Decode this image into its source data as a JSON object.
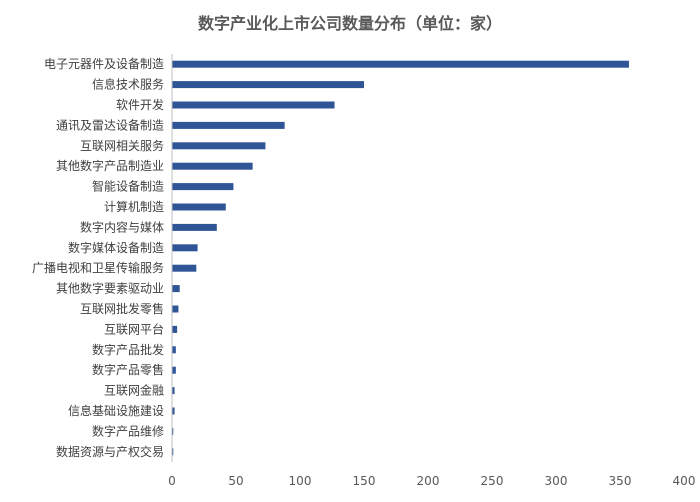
{
  "chart_data": {
    "type": "bar",
    "orientation": "horizontal",
    "title": "数字产业化上市公司数量分布（单位：家）",
    "categories": [
      "电子元器件及设备制造",
      "信息技术服务",
      "软件开发",
      "通讯及雷达设备制造",
      "互联网相关服务",
      "其他数字产品制造业",
      "智能设备制造",
      "计算机制造",
      "数字内容与媒体",
      "数字媒体设备制造",
      "广播电视和卫星传输服务",
      "其他数字要素驱动业",
      "互联网批发零售",
      "互联网平台",
      "数字产品批发",
      "数字产品零售",
      "互联网金融",
      "信息基础设施建设",
      "数字产品维修",
      "数据资源与产权交易"
    ],
    "values": [
      357,
      150,
      127,
      88,
      73,
      63,
      48,
      42,
      35,
      20,
      19,
      6,
      5,
      4,
      3,
      3,
      2,
      2,
      1,
      1
    ],
    "xlim": [
      0,
      400
    ],
    "xticks": [
      "0",
      "50",
      "100",
      "150",
      "200",
      "250",
      "300",
      "350",
      "400"
    ],
    "xlabel": "",
    "ylabel": "",
    "grid": false,
    "colors": {
      "bar": "#2f5597",
      "axis": "#bfbfbf"
    }
  }
}
